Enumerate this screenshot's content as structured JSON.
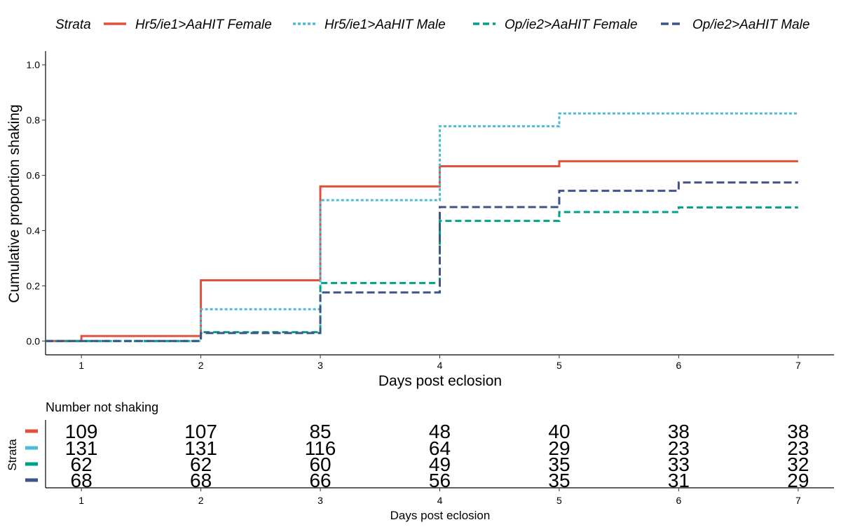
{
  "legend": {
    "title": "Strata",
    "entries": [
      {
        "label": "Hr5/ie1>AaHIT Female",
        "color": "#E2503C",
        "dash": "solid"
      },
      {
        "label": "Hr5/ie1>AaHIT Male",
        "color": "#4DBBD5",
        "dash": "dotted"
      },
      {
        "label": "Op/ie2>AaHIT Female",
        "color": "#00A087",
        "dash": "dashed"
      },
      {
        "label": "Op/ie2>AaHIT Male",
        "color": "#3C5488",
        "dash": "longdash"
      }
    ]
  },
  "chart_data": {
    "type": "line",
    "subtype": "step",
    "title": "",
    "xlabel": "Days post eclosion",
    "ylabel": "Cumulative proportion shaking",
    "xlim": [
      0.7,
      7.3
    ],
    "ylim": [
      -0.05,
      1.05
    ],
    "x_ticks": [
      1,
      2,
      3,
      4,
      5,
      6,
      7
    ],
    "x_tick_labels": [
      "1",
      "2",
      "3",
      "4",
      "5",
      "6",
      "7"
    ],
    "y_ticks": [
      0.0,
      0.2,
      0.4,
      0.6,
      0.8,
      1.0
    ],
    "y_tick_labels": [
      "0.0",
      "0.2",
      "0.4",
      "0.6",
      "0.8",
      "1.0"
    ],
    "grid": false,
    "legend_position": "top",
    "series": [
      {
        "name": "Hr5/ie1>AaHIT Female",
        "x": [
          0.7,
          1,
          2,
          3,
          4,
          5,
          6,
          7
        ],
        "y": [
          0,
          0.018,
          0.22,
          0.56,
          0.633,
          0.651,
          0.651,
          0.651
        ]
      },
      {
        "name": "Hr5/ie1>AaHIT Male",
        "x": [
          0.7,
          1,
          2,
          3,
          4,
          5,
          6,
          7
        ],
        "y": [
          0,
          0,
          0.115,
          0.51,
          0.778,
          0.824,
          0.824,
          0.824
        ]
      },
      {
        "name": "Op/ie2>AaHIT Female",
        "x": [
          0.7,
          1,
          2,
          3,
          4,
          5,
          6,
          7
        ],
        "y": [
          0,
          0,
          0.032,
          0.21,
          0.435,
          0.467,
          0.484,
          0.484
        ]
      },
      {
        "name": "Op/ie2>AaHIT Male",
        "x": [
          0.7,
          1,
          2,
          3,
          4,
          5,
          6,
          7
        ],
        "y": [
          0,
          0,
          0.029,
          0.176,
          0.485,
          0.544,
          0.574,
          0.574
        ]
      }
    ]
  },
  "risk_table": {
    "title": "Number not shaking",
    "ylabel": "Strata",
    "xlabel": "Days post eclosion",
    "x_ticks": [
      1,
      2,
      3,
      4,
      5,
      6,
      7
    ],
    "x_tick_labels": [
      "1",
      "2",
      "3",
      "4",
      "5",
      "6",
      "7"
    ],
    "rows": [
      {
        "color": "#E2503C",
        "values": [
          "109",
          "107",
          "85",
          "48",
          "40",
          "38",
          "38"
        ]
      },
      {
        "color": "#4DBBD5",
        "values": [
          "131",
          "131",
          "116",
          "64",
          "29",
          "23",
          "23"
        ]
      },
      {
        "color": "#00A087",
        "values": [
          "62",
          "62",
          "60",
          "49",
          "35",
          "33",
          "32"
        ]
      },
      {
        "color": "#3C5488",
        "values": [
          "68",
          "68",
          "66",
          "56",
          "35",
          "31",
          "29"
        ]
      }
    ]
  }
}
